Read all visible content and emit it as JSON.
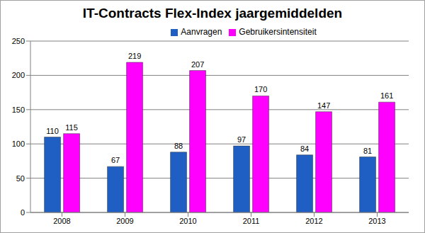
{
  "chart_data": {
    "type": "bar",
    "title": "IT-Contracts Flex-Index jaargemiddelden",
    "categories": [
      "2008",
      "2009",
      "2010",
      "2011",
      "2012",
      "2013"
    ],
    "series": [
      {
        "name": "Aanvragen",
        "color": "#1f5fc4",
        "values": [
          110,
          67,
          88,
          97,
          84,
          81
        ]
      },
      {
        "name": "Gebruikersintensiteit",
        "color": "#ff00ff",
        "values": [
          115,
          219,
          207,
          170,
          147,
          161
        ]
      }
    ],
    "ylim": [
      0,
      250
    ],
    "yticks": [
      0,
      50,
      100,
      150,
      200,
      250
    ],
    "grid": true,
    "data_labels": true,
    "legend": "top"
  }
}
